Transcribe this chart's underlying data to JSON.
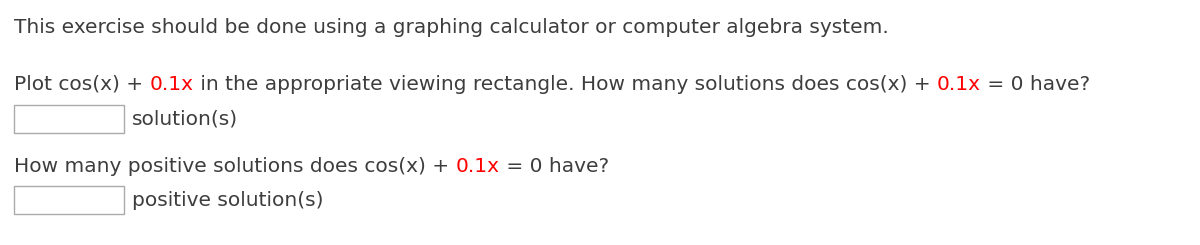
{
  "line1": "This exercise should be done using a graphing calculator or computer algebra system.",
  "line2_parts": [
    {
      "text": "Plot cos(x) + ",
      "color": "#3d3d3d"
    },
    {
      "text": "0.1x",
      "color": "#ff0000"
    },
    {
      "text": " in the appropriate viewing rectangle. How many solutions does cos(x) + ",
      "color": "#3d3d3d"
    },
    {
      "text": "0.1x",
      "color": "#ff0000"
    },
    {
      "text": " = 0 have?",
      "color": "#3d3d3d"
    }
  ],
  "line3": "solution(s)",
  "line4_parts": [
    {
      "text": "How many positive solutions does cos(x) + ",
      "color": "#3d3d3d"
    },
    {
      "text": "0.1x",
      "color": "#ff0000"
    },
    {
      "text": " = 0 have?",
      "color": "#3d3d3d"
    }
  ],
  "line5": "positive solution(s)",
  "font_size": 14.5,
  "background_color": "#ffffff",
  "text_color": "#3d3d3d"
}
